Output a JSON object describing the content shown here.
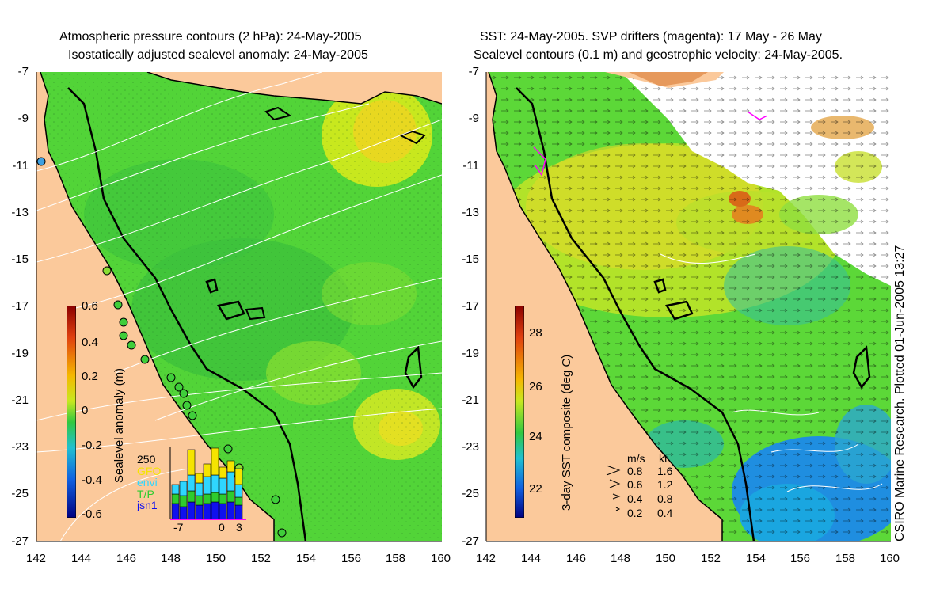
{
  "left_panel": {
    "title_line1": "Atmospheric pressure contours (2 hPa): 24-May-2005",
    "title_line2": "Isostatically adjusted sealevel anomaly: 24-May-2005",
    "colorbar_label": "Sealevel anomaly (m)",
    "colorbar_ticks": [
      "0.6",
      "0.4",
      "0.2",
      "0",
      "-0.2",
      "-0.4",
      "-0.6"
    ],
    "inset": {
      "y_max_label": "250",
      "x_ticks": [
        "-7",
        "0",
        "3"
      ],
      "satellites": [
        {
          "name": "GFO",
          "color": "#f5e400"
        },
        {
          "name": "envi",
          "color": "#2fd6ff"
        },
        {
          "name": "T/P",
          "color": "#2ecc2e"
        },
        {
          "name": "jsn1",
          "color": "#1010ee"
        }
      ]
    }
  },
  "right_panel": {
    "title_line1": "SST: 24-May-2005. SVP drifters (magenta): 17 May - 26 May",
    "title_line2": "Sealevel contours (0.1 m) and geostrophic velocity: 24-May-2005.",
    "colorbar_label": "3-day SST composite (deg C)",
    "colorbar_ticks": [
      "28",
      "26",
      "24",
      "22"
    ],
    "velocity_legend": {
      "header_ms": "m/s",
      "header_kt": "kt",
      "rows": [
        {
          "ms": "0.8",
          "kt": "1.6"
        },
        {
          "ms": "0.6",
          "kt": "1.2"
        },
        {
          "ms": "0.4",
          "kt": "0.8"
        },
        {
          "ms": "0.2",
          "kt": "0.4"
        }
      ]
    }
  },
  "axes": {
    "lat_ticks": [
      "-7",
      "-9",
      "-11",
      "-13",
      "-15",
      "-17",
      "-19",
      "-21",
      "-23",
      "-25",
      "-27"
    ],
    "lon_ticks": [
      "142",
      "144",
      "146",
      "148",
      "150",
      "152",
      "154",
      "156",
      "158",
      "160"
    ]
  },
  "credit": "CSIRO Marine Research. Plotted 01-Jun-2005 13:27",
  "colors": {
    "land": "#fbc99b",
    "ocean_green": "#58d83a",
    "coast": "#000000"
  }
}
